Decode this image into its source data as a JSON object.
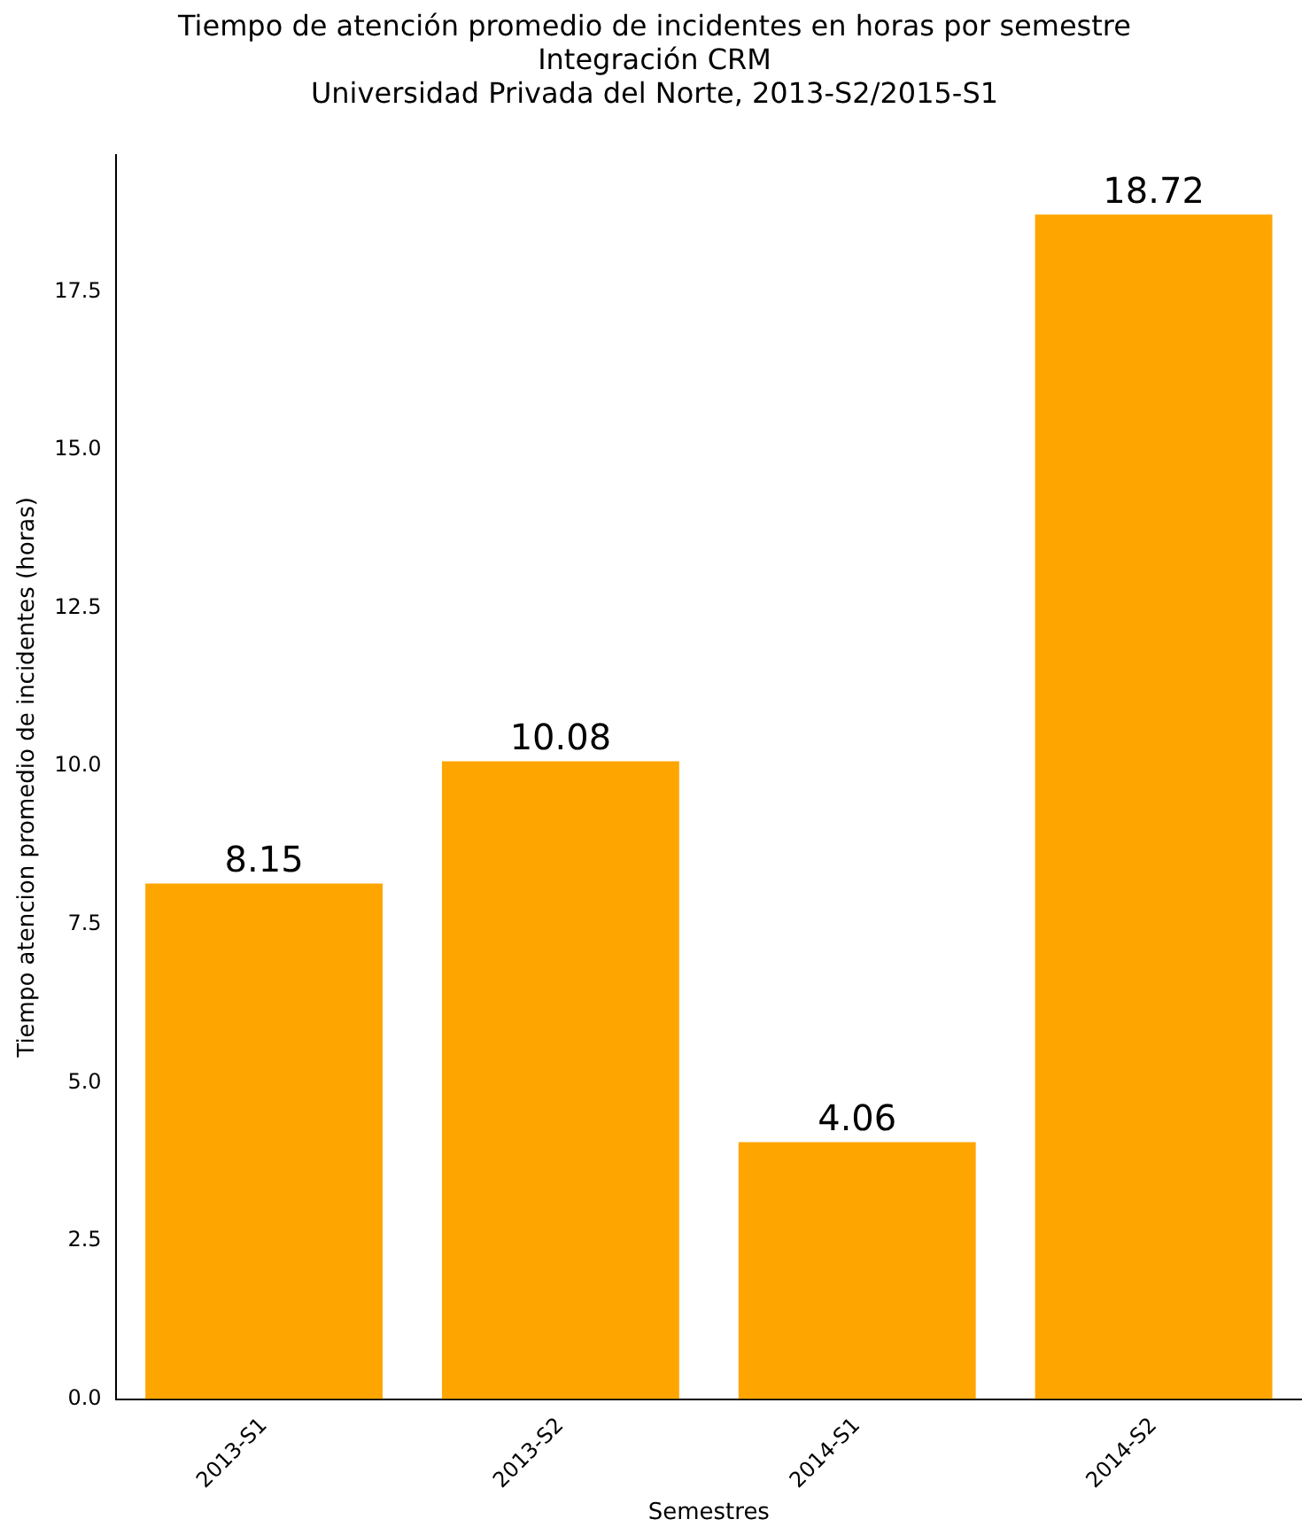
{
  "chart_data": {
    "type": "bar",
    "title": "Tiempo de atención promedio de incidentes en horas por semestre",
    "subtitle": "Integración CRM\nUniversidad Privada del Norte, 2013-S2/2015-S1",
    "xlabel": "Semestres",
    "ylabel": "Tiempo atencion promedio de incidentes (horas)",
    "categories": [
      "2013-S1",
      "2013-S2",
      "2014-S1",
      "2014-S2"
    ],
    "values": [
      8.15,
      10.08,
      4.06,
      18.72
    ],
    "color": "#ffa500",
    "ylim": [
      0,
      19.66
    ],
    "yticks": [
      {
        "value": 0,
        "label": "0.0"
      },
      {
        "value": 2.5,
        "label": "2.5"
      },
      {
        "value": 5,
        "label": "5.0"
      },
      {
        "value": 7.5,
        "label": "7.5"
      },
      {
        "value": 10,
        "label": "10.0"
      },
      {
        "value": 12.5,
        "label": "12.5"
      },
      {
        "value": 15,
        "label": "15.0"
      },
      {
        "value": 17.5,
        "label": "17.5"
      }
    ],
    "data_labels": true,
    "grid": false,
    "legend": false
  }
}
